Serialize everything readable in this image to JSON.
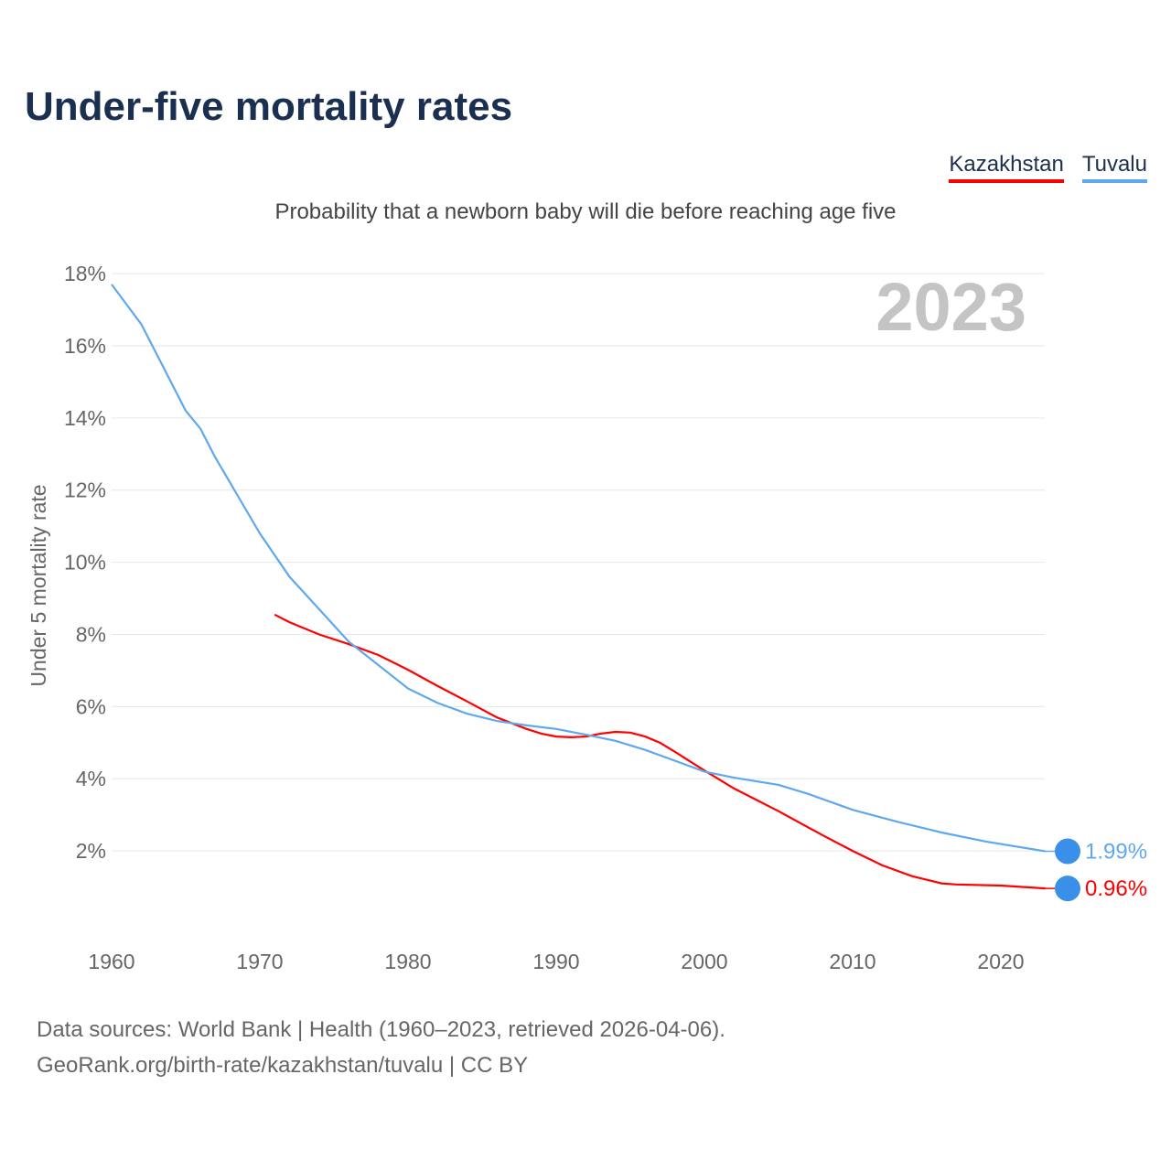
{
  "title": "Under-five mortality rates",
  "subtitle": "Probability that a newborn baby will die before reaching age five",
  "footer": {
    "line1": "Data sources: World Bank | Health (1960–2023, retrieved 2026-04-06).",
    "line2": "GeoRank.org/birth-rate/kazakhstan/tuvalu | CC BY"
  },
  "chart_data": {
    "type": "line",
    "title": "Under-five mortality rates",
    "ylabel": "Under 5 mortality rate",
    "xlabel": "",
    "year_label": "2023",
    "xlim": [
      1960,
      2023
    ],
    "ylim": [
      0,
      18
    ],
    "xticks": [
      1960,
      1970,
      1980,
      1990,
      2000,
      2010,
      2020
    ],
    "yticks": [
      2,
      4,
      6,
      8,
      10,
      12,
      14,
      16,
      18
    ],
    "ytick_suffix": "%",
    "grid": true,
    "legend_placement": "top-right",
    "series": [
      {
        "name": "Kazakhstan",
        "color": "#ff0000",
        "end_label": "0.96%",
        "x": [
          1971,
          1972,
          1974,
          1976,
          1978,
          1980,
          1982,
          1984,
          1986,
          1988,
          1989,
          1990,
          1991,
          1992,
          1993,
          1994,
          1995,
          1996,
          1997,
          1998,
          2000,
          2002,
          2005,
          2008,
          2010,
          2012,
          2014,
          2016,
          2017,
          2020,
          2023
        ],
        "y": [
          8.55,
          8.34,
          8.0,
          7.73,
          7.43,
          7.02,
          6.57,
          6.14,
          5.7,
          5.38,
          5.25,
          5.17,
          5.15,
          5.17,
          5.25,
          5.3,
          5.28,
          5.17,
          5.0,
          4.75,
          4.23,
          3.73,
          3.1,
          2.43,
          2.0,
          1.6,
          1.3,
          1.1,
          1.07,
          1.04,
          0.96
        ]
      },
      {
        "name": "Tuvalu",
        "color": "#5fa8ee",
        "end_label": "1.99%",
        "x": [
          1960,
          1962,
          1965,
          1966,
          1967,
          1970,
          1972,
          1974,
          1976,
          1978,
          1980,
          1982,
          1984,
          1986,
          1988,
          1990,
          1992,
          1994,
          1996,
          1998,
          2000,
          2002,
          2005,
          2007,
          2010,
          2013,
          2016,
          2019,
          2023
        ],
        "y": [
          17.7,
          16.6,
          14.2,
          13.7,
          12.9,
          10.8,
          9.6,
          8.7,
          7.8,
          7.15,
          6.5,
          6.1,
          5.8,
          5.6,
          5.48,
          5.38,
          5.22,
          5.05,
          4.8,
          4.5,
          4.2,
          4.03,
          3.83,
          3.58,
          3.14,
          2.81,
          2.51,
          2.26,
          1.99
        ]
      }
    ]
  }
}
